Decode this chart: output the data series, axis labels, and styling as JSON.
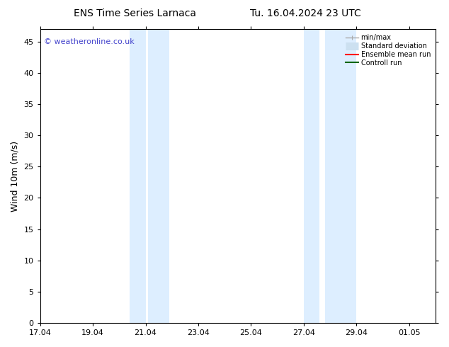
{
  "title_left": "ENS Time Series Larnaca",
  "title_right": "Tu. 16.04.2024 23 UTC",
  "ylabel": "Wind 10m (m/s)",
  "xlabel": "",
  "ylim": [
    0,
    47
  ],
  "yticks": [
    0,
    5,
    10,
    15,
    20,
    25,
    30,
    35,
    40,
    45
  ],
  "xtick_labels": [
    "17.04",
    "19.04",
    "21.04",
    "23.04",
    "25.04",
    "27.04",
    "29.04",
    "01.05"
  ],
  "xtick_positions": [
    0,
    2,
    4,
    6,
    8,
    10,
    12,
    14
  ],
  "xlim": [
    0,
    15
  ],
  "background_color": "#ffffff",
  "shaded_regions": [
    {
      "x_start": 3.4,
      "x_end": 4.0
    },
    {
      "x_start": 4.1,
      "x_end": 4.9
    },
    {
      "x_start": 10.0,
      "x_end": 10.6
    },
    {
      "x_start": 10.8,
      "x_end": 12.0
    }
  ],
  "shade_color": "#ddeeff",
  "watermark_text": "© weatheronline.co.uk",
  "watermark_color": "#4444cc",
  "legend_labels": [
    "min/max",
    "Standard deviation",
    "Ensemble mean run",
    "Controll run"
  ],
  "legend_colors": [
    "#aaaaaa",
    "#cce0f0",
    "#ff0000",
    "#006600"
  ],
  "legend_lws": [
    1.0,
    8,
    1.5,
    1.5
  ],
  "spine_color": "#000000",
  "title_fontsize": 10,
  "axis_label_fontsize": 9,
  "tick_fontsize": 8,
  "watermark_fontsize": 8,
  "legend_fontsize": 7
}
